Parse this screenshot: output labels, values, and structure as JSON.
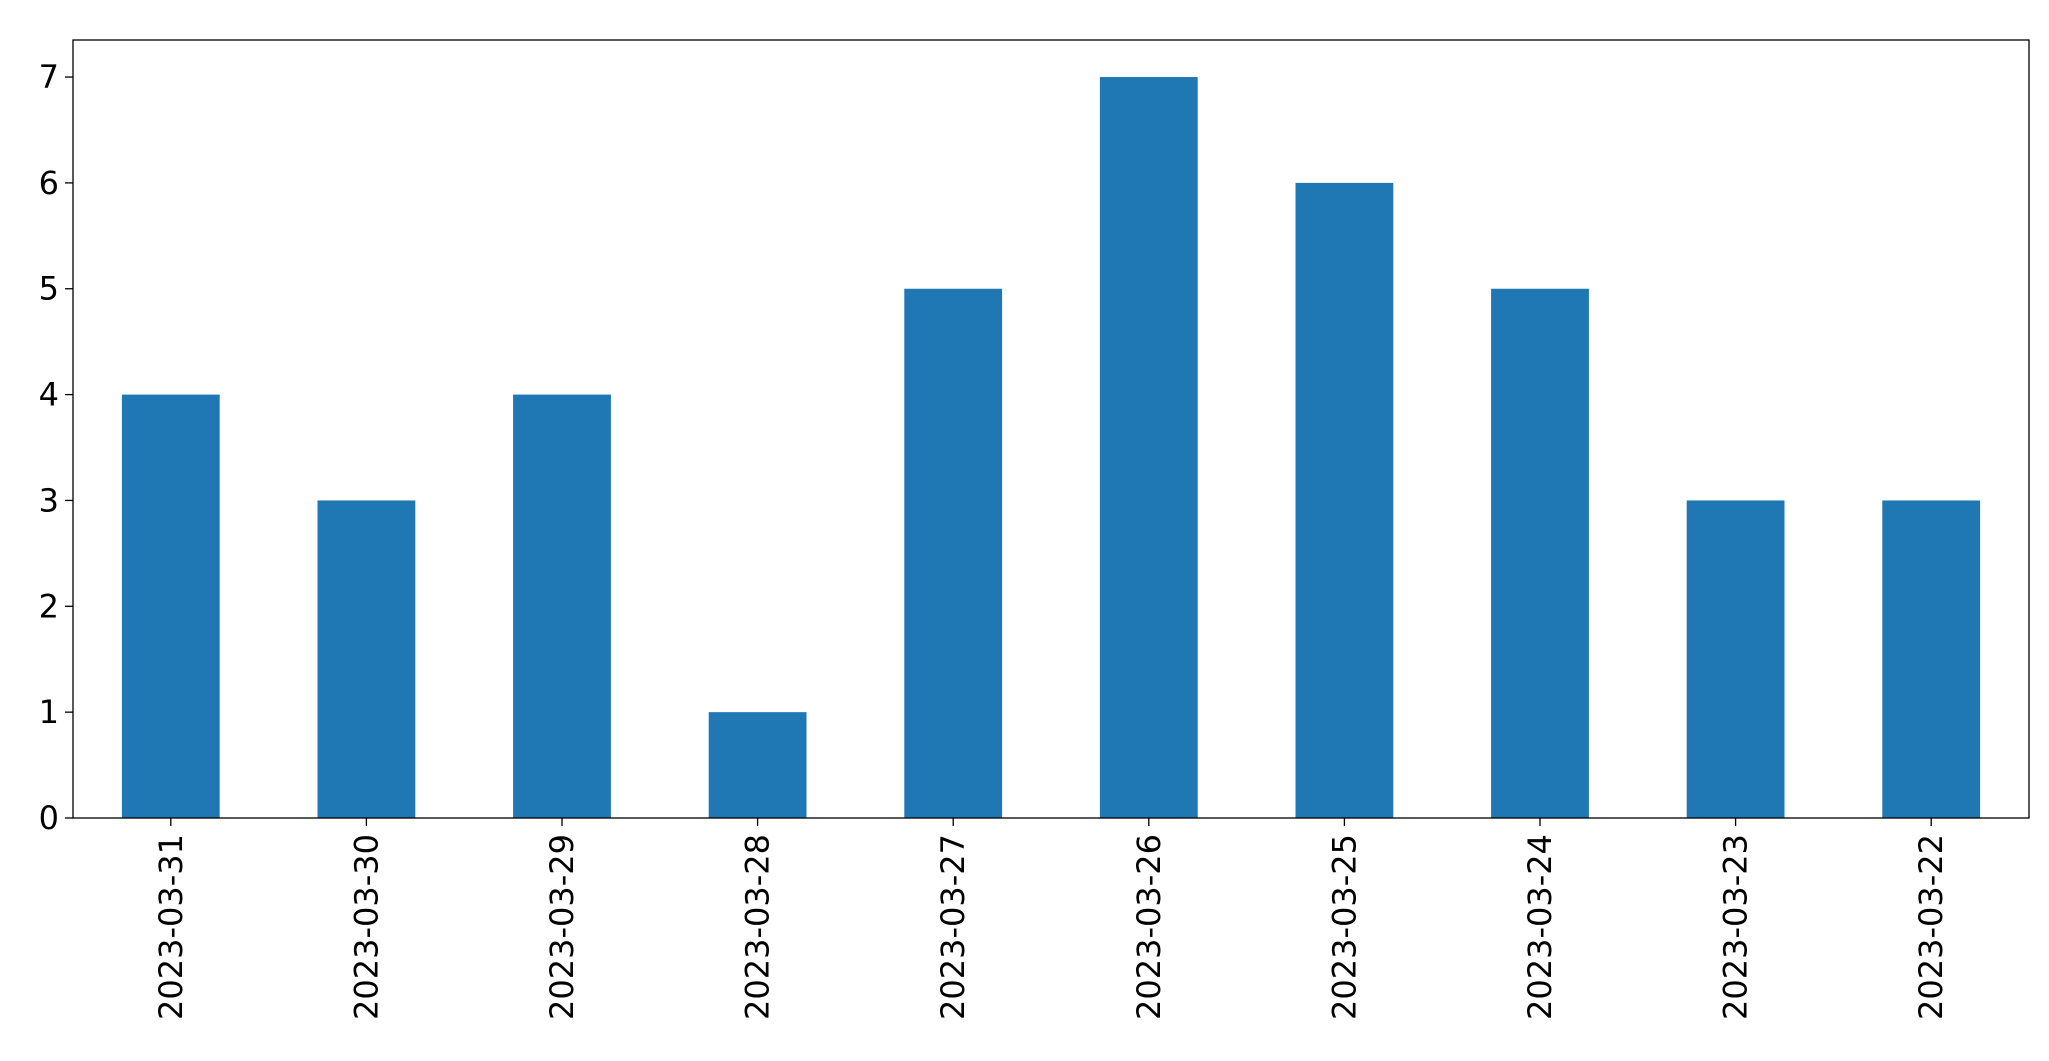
{
  "chart_data": {
    "type": "bar",
    "categories": [
      "2023-03-31",
      "2023-03-30",
      "2023-03-29",
      "2023-03-28",
      "2023-03-27",
      "2023-03-26",
      "2023-03-25",
      "2023-03-24",
      "2023-03-23",
      "2023-03-22"
    ],
    "values": [
      4,
      3,
      4,
      1,
      5,
      7,
      6,
      5,
      3,
      3
    ],
    "color": "#1f77b4",
    "ylim": [
      0,
      7.35
    ],
    "yticks": [
      0,
      1,
      2,
      3,
      4,
      5,
      6,
      7
    ],
    "grid": false
  }
}
